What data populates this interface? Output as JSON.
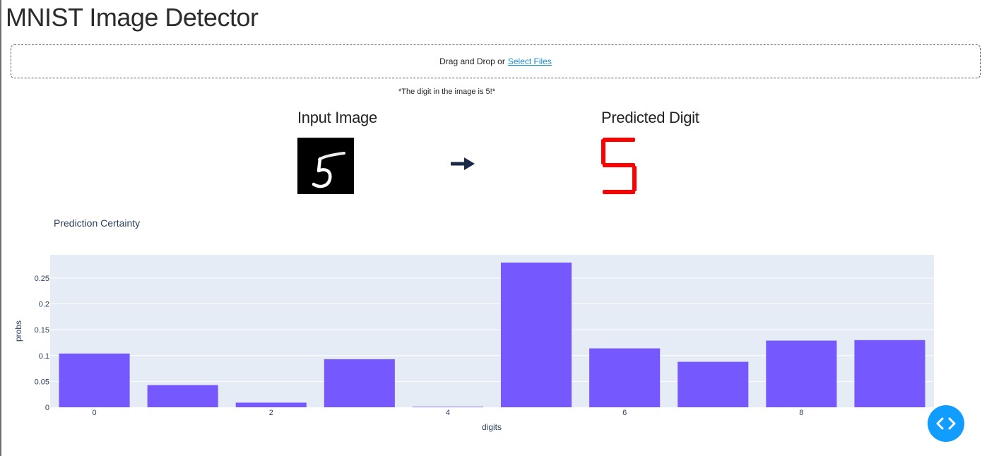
{
  "header": {
    "title": "MNIST Image Detector"
  },
  "upload": {
    "prefix": "Drag and Drop or",
    "link_label": "Select Files"
  },
  "result": {
    "message": "*The digit in the image is 5!*"
  },
  "panels": {
    "input_label": "Input Image",
    "predicted_label": "Predicted Digit",
    "predicted_digit": "5",
    "predicted_color": "#ff0000",
    "arrow_icon": "right-arrow-icon"
  },
  "chart_title": "Prediction Certainty",
  "chart_data": {
    "type": "bar",
    "x": [
      0,
      1,
      2,
      3,
      4,
      5,
      6,
      7,
      8,
      9
    ],
    "values": [
      0.104,
      0.043,
      0.009,
      0.093,
      0.001,
      0.28,
      0.114,
      0.088,
      0.129,
      0.13
    ],
    "xlabel": "digits",
    "ylabel": "probs",
    "x_tick_labels": [
      "0",
      "2",
      "4",
      "6",
      "8"
    ],
    "y_tick_labels": [
      "0",
      "0.05",
      "0.1",
      "0.15",
      "0.2",
      "0.25"
    ],
    "ylim": [
      0,
      0.295
    ],
    "bar_color": "#7559ff",
    "plot_bg": "#e5ecf6",
    "grid": true
  },
  "fab": {
    "icon": "code-brackets-icon",
    "color": "#119dff"
  }
}
